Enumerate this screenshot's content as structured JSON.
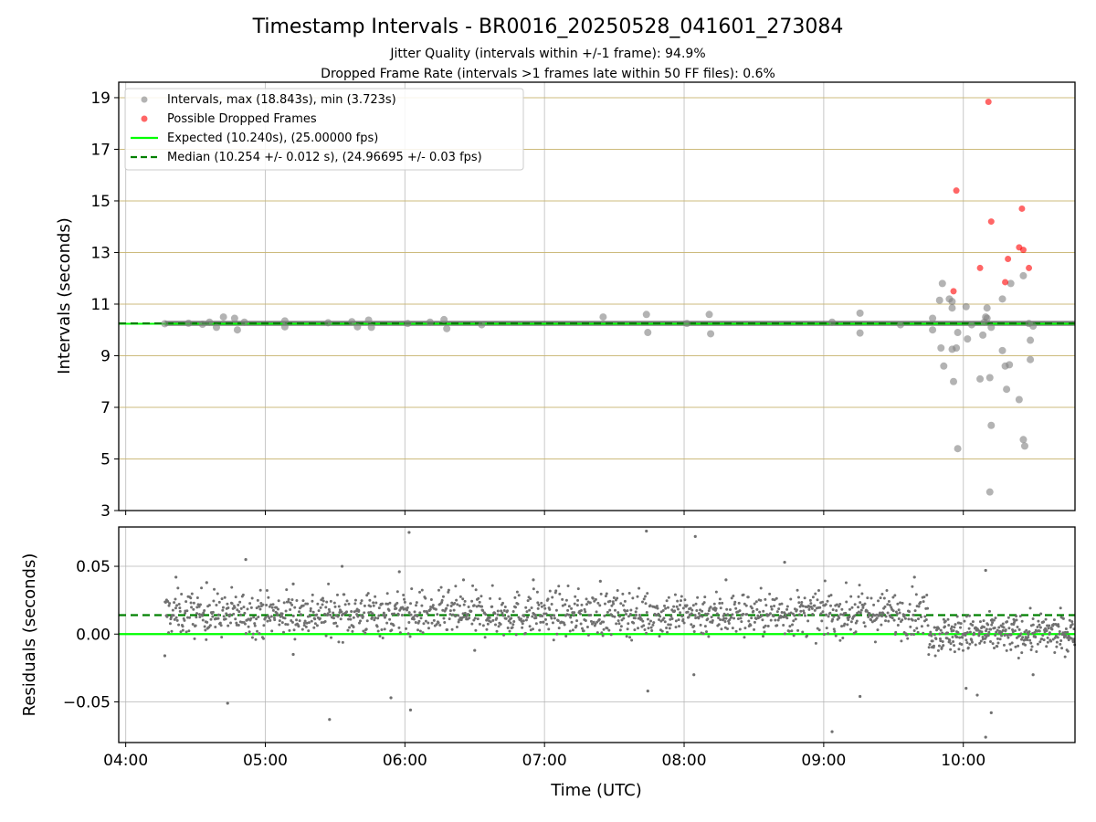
{
  "chart_data": [
    {
      "type": "scatter",
      "title": "Timestamp Intervals - BR0016_20250528_041601_273084",
      "subtitle_lines": [
        "Jitter Quality (intervals within +/-1 frame): 94.9%",
        "Dropped Frame Rate (intervals >1 frames late within 50 FF files): 0.6%"
      ],
      "xlabel": "",
      "ylabel": "Intervals (seconds)",
      "x_unit": "hours UTC",
      "xlim": [
        3.95,
        10.8
      ],
      "ylim": [
        3.0,
        19.6
      ],
      "yticks": [
        3,
        5,
        7,
        9,
        11,
        13,
        15,
        17,
        19
      ],
      "grid": true,
      "legend_position": "top-left",
      "legend": [
        "Intervals, max (18.843s), min (3.723s)",
        "Possible Dropped Frames",
        "Expected (10.240s), (25.00000 fps)",
        "Median (10.254 +/- 0.012 s), (24.96695 +/- 0.03 fps)"
      ],
      "lines": {
        "expected": 10.24,
        "median": 10.254
      },
      "colors": {
        "intervals": "#808080",
        "dropped": "#ff0000",
        "expected": "#00ff00",
        "median": "#008000",
        "band": "#606060"
      },
      "band": {
        "x_start": 4.28,
        "x_end": 10.8,
        "y_low": 10.16,
        "y_high": 10.35
      },
      "series": [
        {
          "name": "Intervals, max (18.843s), min (3.723s)",
          "points": [
            [
              4.28,
              10.24
            ],
            [
              4.45,
              10.26
            ],
            [
              4.55,
              10.22
            ],
            [
              4.6,
              10.3
            ],
            [
              4.65,
              10.1
            ],
            [
              4.7,
              10.5
            ],
            [
              4.78,
              10.45
            ],
            [
              4.8,
              10.0
            ],
            [
              4.85,
              10.3
            ],
            [
              5.14,
              10.35
            ],
            [
              5.14,
              10.12
            ],
            [
              5.45,
              10.28
            ],
            [
              5.62,
              10.32
            ],
            [
              5.66,
              10.12
            ],
            [
              5.74,
              10.38
            ],
            [
              5.76,
              10.1
            ],
            [
              6.02,
              10.25
            ],
            [
              6.18,
              10.3
            ],
            [
              6.28,
              10.4
            ],
            [
              6.3,
              10.05
            ],
            [
              6.55,
              10.2
            ],
            [
              7.42,
              10.5
            ],
            [
              7.73,
              10.6
            ],
            [
              7.74,
              9.9
            ],
            [
              8.02,
              10.25
            ],
            [
              8.18,
              10.6
            ],
            [
              8.19,
              9.85
            ],
            [
              9.06,
              10.3
            ],
            [
              9.26,
              10.65
            ],
            [
              9.26,
              9.88
            ],
            [
              9.55,
              10.2
            ],
            [
              9.78,
              10.45
            ],
            [
              9.78,
              10.0
            ],
            [
              9.83,
              11.15
            ],
            [
              9.85,
              11.8
            ],
            [
              9.84,
              9.3
            ],
            [
              9.86,
              8.6
            ],
            [
              9.9,
              11.2
            ],
            [
              9.92,
              11.1
            ],
            [
              9.92,
              10.85
            ],
            [
              9.92,
              9.25
            ],
            [
              9.93,
              8.0
            ],
            [
              9.95,
              9.3
            ],
            [
              9.96,
              5.4
            ],
            [
              9.96,
              9.9
            ],
            [
              10.02,
              10.9
            ],
            [
              10.03,
              9.65
            ],
            [
              10.06,
              10.2
            ],
            [
              10.12,
              8.1
            ],
            [
              10.14,
              9.8
            ],
            [
              10.15,
              10.3
            ],
            [
              10.16,
              10.5
            ],
            [
              10.17,
              10.45
            ],
            [
              10.17,
              10.85
            ],
            [
              10.19,
              8.15
            ],
            [
              10.2,
              10.1
            ],
            [
              10.19,
              3.72
            ],
            [
              10.2,
              6.3
            ],
            [
              10.28,
              11.2
            ],
            [
              10.28,
              9.2
            ],
            [
              10.3,
              8.6
            ],
            [
              10.31,
              7.7
            ],
            [
              10.33,
              8.65
            ],
            [
              10.34,
              11.8
            ],
            [
              10.4,
              7.3
            ],
            [
              10.43,
              12.1
            ],
            [
              10.43,
              5.75
            ],
            [
              10.44,
              5.5
            ],
            [
              10.47,
              10.25
            ],
            [
              10.48,
              9.6
            ],
            [
              10.48,
              8.85
            ],
            [
              10.5,
              10.15
            ]
          ]
        },
        {
          "name": "Possible Dropped Frames",
          "points": [
            [
              9.93,
              11.5
            ],
            [
              9.95,
              15.4
            ],
            [
              10.12,
              12.4
            ],
            [
              10.18,
              18.84
            ],
            [
              10.2,
              14.2
            ],
            [
              10.3,
              11.85
            ],
            [
              10.32,
              12.75
            ],
            [
              10.4,
              13.2
            ],
            [
              10.42,
              14.7
            ],
            [
              10.43,
              13.1
            ],
            [
              10.47,
              12.4
            ]
          ]
        }
      ]
    },
    {
      "type": "scatter",
      "title": "",
      "xlabel": "Time (UTC)",
      "ylabel": "Residuals (seconds)",
      "xlim": [
        3.95,
        10.8
      ],
      "ylim": [
        -0.08,
        0.079
      ],
      "yticks": [
        -0.05,
        0.0,
        0.05
      ],
      "ytick_labels": [
        "−0.05",
        "0.00",
        "0.05"
      ],
      "xticks": [
        4,
        5,
        6,
        7,
        8,
        9,
        10
      ],
      "xtick_labels": [
        "04:00",
        "05:00",
        "06:00",
        "07:00",
        "08:00",
        "09:00",
        "10:00"
      ],
      "grid": true,
      "lines": {
        "expected": 0.0,
        "median": 0.014
      },
      "colors": {
        "points": "#707070",
        "expected": "#00ff00",
        "median": "#008000"
      },
      "series": [
        {
          "name": "",
          "segments": [
            {
              "x_start": 4.28,
              "x_end": 9.75,
              "center": 0.015,
              "spread": 0.011,
              "count": 1350
            },
            {
              "x_start": 9.75,
              "x_end": 10.8,
              "center": 0.0,
              "spread": 0.009,
              "count": 330
            }
          ],
          "outliers": [
            [
              4.28,
              -0.016
            ],
            [
              4.36,
              0.042
            ],
            [
              4.58,
              0.038
            ],
            [
              4.73,
              -0.051
            ],
            [
              4.86,
              0.055
            ],
            [
              5.2,
              0.037
            ],
            [
              5.2,
              -0.015
            ],
            [
              5.46,
              -0.063
            ],
            [
              5.55,
              0.05
            ],
            [
              5.9,
              -0.047
            ],
            [
              5.96,
              0.046
            ],
            [
              6.03,
              0.075
            ],
            [
              6.04,
              -0.056
            ],
            [
              6.42,
              0.04
            ],
            [
              6.5,
              -0.012
            ],
            [
              6.92,
              0.04
            ],
            [
              7.4,
              0.039
            ],
            [
              7.73,
              0.076
            ],
            [
              7.74,
              -0.042
            ],
            [
              8.07,
              -0.03
            ],
            [
              8.08,
              0.072
            ],
            [
              8.3,
              0.04
            ],
            [
              8.72,
              0.053
            ],
            [
              9.06,
              -0.072
            ],
            [
              9.26,
              -0.046
            ],
            [
              9.65,
              0.042
            ],
            [
              10.02,
              -0.04
            ],
            [
              10.16,
              0.047
            ],
            [
              10.16,
              -0.076
            ],
            [
              10.2,
              -0.058
            ],
            [
              10.5,
              -0.03
            ],
            [
              10.1,
              -0.045
            ]
          ]
        }
      ]
    }
  ]
}
